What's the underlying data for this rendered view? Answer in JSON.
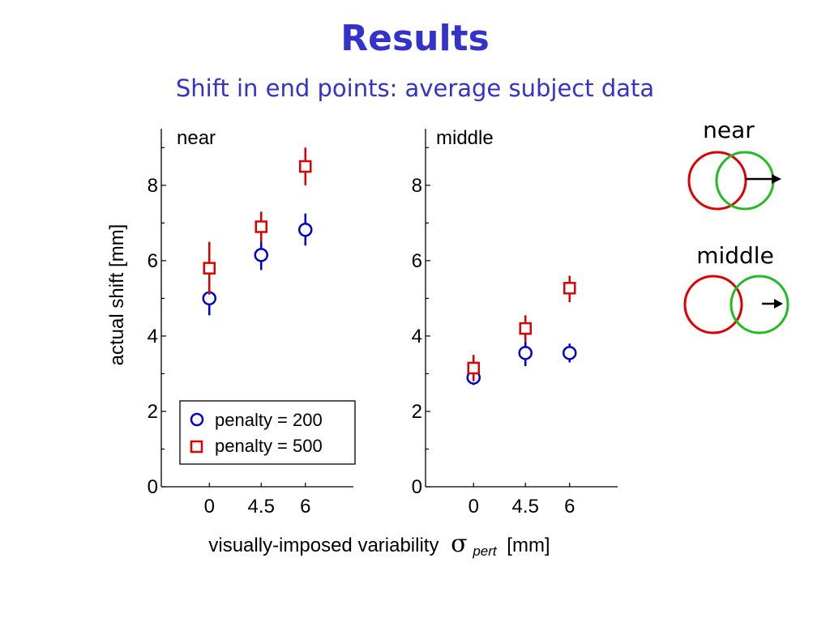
{
  "slide": {
    "title": "Results",
    "subtitle": "Shift in end points: average subject data"
  },
  "chart_data": {
    "type": "scatter",
    "ylabel": "actual shift  [mm]",
    "xlabel_main": "visually-imposed variability",
    "xlabel_sigma": "σ",
    "xlabel_sub": "pert",
    "xlabel_unit": "[mm]",
    "ylim": [
      0,
      9.5
    ],
    "yticks": [
      0,
      2,
      4,
      6,
      8
    ],
    "xticks": [
      0,
      4.5,
      6
    ],
    "xtick_labels": [
      "0",
      "4.5",
      "6"
    ],
    "legend": {
      "placement": "lower-left of first panel",
      "entries": [
        {
          "label": "penalty = 200",
          "marker": "circle",
          "color": "#0000cc"
        },
        {
          "label": "penalty = 500",
          "marker": "square",
          "color": "#dd0000"
        }
      ]
    },
    "panels": [
      {
        "label": "near",
        "series": [
          {
            "name": "penalty = 200",
            "marker": "circle",
            "color": "#0000cc",
            "x": [
              0,
              4.5,
              6
            ],
            "y": [
              5.0,
              6.15,
              6.82
            ],
            "err_low": [
              4.55,
              5.75,
              6.4
            ],
            "err_high": [
              5.45,
              6.55,
              7.25
            ]
          },
          {
            "name": "penalty = 500",
            "marker": "square",
            "color": "#dd0000",
            "x": [
              0,
              4.5,
              6
            ],
            "y": [
              5.8,
              6.9,
              8.5
            ],
            "err_low": [
              5.1,
              6.5,
              8.0
            ],
            "err_high": [
              6.5,
              7.3,
              9.0
            ]
          }
        ]
      },
      {
        "label": "middle",
        "series": [
          {
            "name": "penalty = 200",
            "marker": "circle",
            "color": "#0000cc",
            "x": [
              0,
              4.5,
              6
            ],
            "y": [
              2.9,
              3.55,
              3.55
            ],
            "err_low": [
              2.7,
              3.2,
              3.3
            ],
            "err_high": [
              3.1,
              3.85,
              3.8
            ]
          },
          {
            "name": "penalty = 500",
            "marker": "square",
            "color": "#dd0000",
            "x": [
              0,
              4.5,
              6
            ],
            "y": [
              3.15,
              4.2,
              5.27
            ],
            "err_low": [
              2.8,
              3.85,
              4.9
            ],
            "err_high": [
              3.5,
              4.55,
              5.6
            ]
          }
        ]
      }
    ]
  },
  "diagrams": [
    {
      "label": "near",
      "circle_colors": [
        "#dd0000",
        "#22bb22"
      ]
    },
    {
      "label": "middle",
      "circle_colors": [
        "#dd0000",
        "#22bb22"
      ]
    }
  ]
}
